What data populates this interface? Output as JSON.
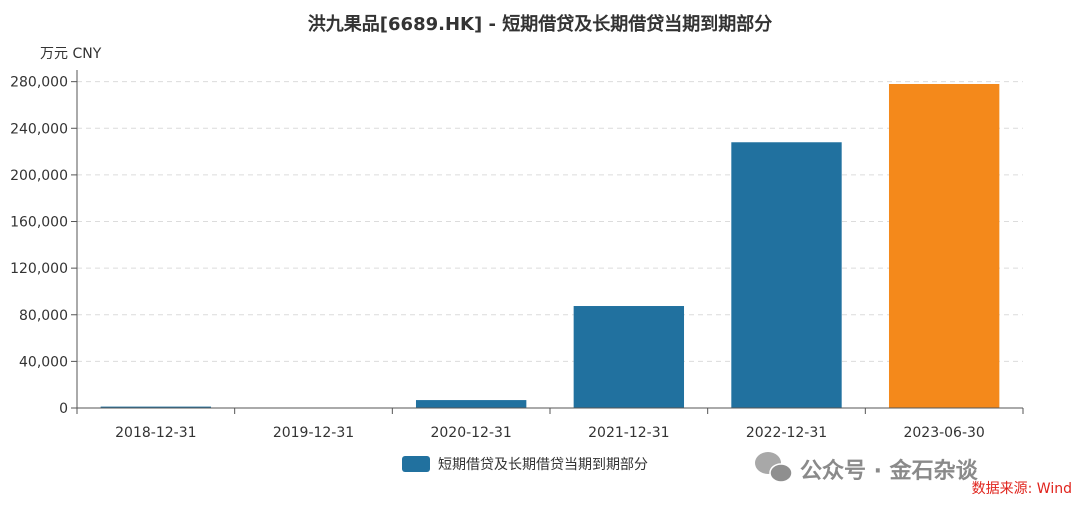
{
  "chart_data": {
    "type": "bar",
    "title": "洪九果品[6689.HK] - 短期借贷及长期借贷当期到期部分",
    "unit_label": "万元  CNY",
    "categories": [
      "2018-12-31",
      "2019-12-31",
      "2020-12-31",
      "2021-12-31",
      "2022-12-31",
      "2023-06-30"
    ],
    "series": [
      {
        "name": "短期借贷及长期借贷当期到期部分",
        "values": [
          1200,
          300,
          6800,
          87500,
          228000,
          278000
        ],
        "color": "#21719f",
        "highlight_color": "#f4891b",
        "highlight_index": 5
      }
    ],
    "ylim": [
      0,
      290000
    ],
    "yticks": [
      0,
      40000,
      80000,
      120000,
      160000,
      200000,
      240000,
      280000
    ],
    "ytick_labels": [
      "0",
      "40,000",
      "80,000",
      "120,000",
      "160,000",
      "200,000",
      "240,000",
      "280,000"
    ],
    "grid": true,
    "legend_position": "bottom-center"
  },
  "watermark": "公众号 · 金石杂谈",
  "source": "数据来源: Wind"
}
